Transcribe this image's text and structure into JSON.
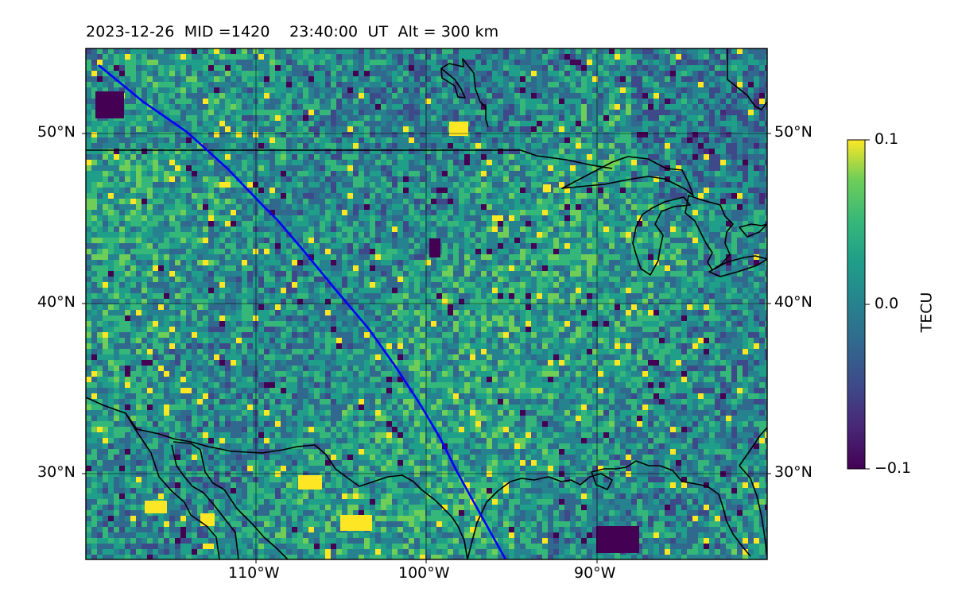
{
  "header": {
    "date": "2023-12-26",
    "mid": "MID =1420",
    "time": "23:40:00  UT",
    "alt": "Alt = 300 km"
  },
  "axes": {
    "lat_labels": [
      "50°N",
      "40°N",
      "30°N"
    ],
    "lon_labels": [
      "110°W",
      "100°W",
      "90°W"
    ],
    "lat_range": [
      25,
      55
    ],
    "lon_range": [
      -120,
      -80
    ],
    "grid": true
  },
  "colorbar": {
    "label": "TECU",
    "ticks": [
      "0.1",
      "0.0",
      "−0.1"
    ],
    "range": [
      -0.1,
      0.1
    ],
    "colormap": "viridis"
  },
  "overlay": {
    "track_color": "#0000ff",
    "coastline_color": "#000000"
  },
  "map_colors": {
    "low": "#440154",
    "mid": "#21918c",
    "high": "#fde725"
  }
}
